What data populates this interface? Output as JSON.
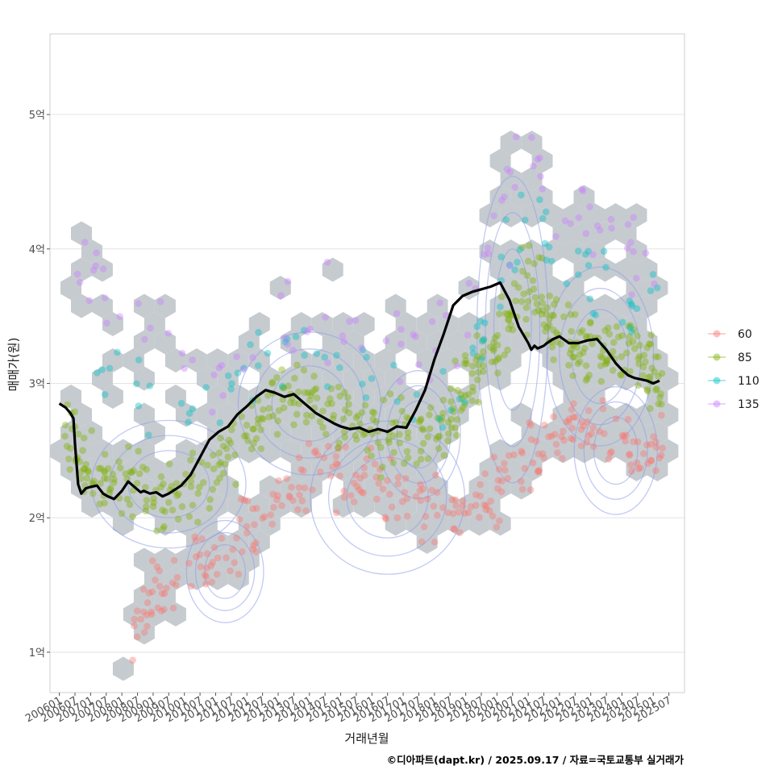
{
  "chart_data": {
    "type": "scatter",
    "title": "",
    "xlabel": "거래년월",
    "ylabel": "매매가(원)",
    "caption": "©디아파트(dapt.kr) / 2025.09.17 / 자료=국토교통부 실거래가",
    "ylim": [
      0.7,
      5.6
    ],
    "xlim": [
      -0.3,
      20.0
    ],
    "y_ticks": [
      {
        "value": 1,
        "label": "1억"
      },
      {
        "value": 2,
        "label": "2억"
      },
      {
        "value": 3,
        "label": "3억"
      },
      {
        "value": 4,
        "label": "4억"
      },
      {
        "value": 5,
        "label": "5억"
      }
    ],
    "x_ticks": [
      "200601",
      "200607",
      "200701",
      "200707",
      "200801",
      "200807",
      "200901",
      "200907",
      "201001",
      "201007",
      "201101",
      "201107",
      "201201",
      "201207",
      "201301",
      "201307",
      "201401",
      "201407",
      "201501",
      "201507",
      "201601",
      "201607",
      "201701",
      "201707",
      "201801",
      "201807",
      "201901",
      "201907",
      "202001",
      "202007",
      "202101",
      "202107",
      "202201",
      "202207",
      "202301",
      "202307",
      "202401",
      "202407",
      "202501",
      "202507"
    ],
    "grid": true,
    "legend_position": "right",
    "series": [
      {
        "name": "60",
        "color": "#F8766D",
        "anchors": [
          [
            2.2,
            1.0
          ],
          [
            3.0,
            1.4
          ],
          [
            4.0,
            1.6
          ],
          [
            5.0,
            1.7
          ],
          [
            6.0,
            1.9
          ],
          [
            7.0,
            2.1
          ],
          [
            8.0,
            2.3
          ],
          [
            9.0,
            2.35
          ],
          [
            10.0,
            2.3
          ],
          [
            11.0,
            2.2
          ],
          [
            12.0,
            2.1
          ],
          [
            13.0,
            2.05
          ],
          [
            14.0,
            2.2
          ],
          [
            15.0,
            2.45
          ],
          [
            15.8,
            2.6
          ],
          [
            16.5,
            2.7
          ],
          [
            17.5,
            2.6
          ],
          [
            18.5,
            2.5
          ],
          [
            19.3,
            2.55
          ]
        ],
        "spread": 0.22
      },
      {
        "name": "85",
        "color": "#7CAE00",
        "anchors": [
          [
            0.2,
            2.65
          ],
          [
            0.8,
            2.35
          ],
          [
            1.5,
            2.3
          ],
          [
            2.5,
            2.2
          ],
          [
            3.5,
            2.15
          ],
          [
            4.5,
            2.2
          ],
          [
            5.5,
            2.45
          ],
          [
            6.5,
            2.75
          ],
          [
            7.5,
            2.95
          ],
          [
            8.5,
            2.85
          ],
          [
            9.5,
            2.7
          ],
          [
            10.5,
            2.6
          ],
          [
            11.5,
            2.6
          ],
          [
            12.3,
            2.7
          ],
          [
            13.0,
            2.9
          ],
          [
            13.8,
            3.2
          ],
          [
            14.5,
            3.6
          ],
          [
            15.2,
            3.75
          ],
          [
            15.8,
            3.4
          ],
          [
            16.5,
            3.3
          ],
          [
            17.2,
            3.3
          ],
          [
            18.0,
            3.25
          ],
          [
            18.8,
            3.1
          ],
          [
            19.3,
            3.0
          ]
        ],
        "spread": 0.25
      },
      {
        "name": "110",
        "color": "#00BFC4",
        "anchors": [
          [
            1.2,
            3.2
          ],
          [
            2.5,
            2.9
          ],
          [
            4.5,
            2.8
          ],
          [
            6.0,
            3.0
          ],
          [
            7.3,
            3.25
          ],
          [
            8.8,
            3.15
          ],
          [
            10.5,
            2.95
          ],
          [
            12.5,
            2.95
          ],
          [
            13.5,
            3.3
          ],
          [
            14.3,
            3.9
          ],
          [
            15.0,
            4.3
          ],
          [
            16.0,
            3.9
          ],
          [
            17.0,
            3.85
          ],
          [
            18.3,
            3.6
          ],
          [
            19.2,
            3.5
          ]
        ],
        "spread": 0.3
      },
      {
        "name": "135",
        "color": "#C77CFF",
        "anchors": [
          [
            0.2,
            3.7
          ],
          [
            1.3,
            3.8
          ],
          [
            3.0,
            3.3
          ],
          [
            5.0,
            3.1
          ],
          [
            7.2,
            3.6
          ],
          [
            8.5,
            3.55
          ],
          [
            10.0,
            3.3
          ],
          [
            11.5,
            3.35
          ],
          [
            12.8,
            3.4
          ],
          [
            14.0,
            4.1
          ],
          [
            14.8,
            4.6
          ],
          [
            16.0,
            4.35
          ],
          [
            17.0,
            4.1
          ],
          [
            18.3,
            4.0
          ],
          [
            19.2,
            3.8
          ]
        ],
        "spread": 0.35
      }
    ],
    "trend_line": {
      "color": "#000000",
      "x": [
        0.0,
        0.2,
        0.35,
        0.45,
        0.5,
        0.6,
        0.7,
        0.85,
        1.0,
        1.2,
        1.4,
        1.55,
        1.75,
        2.0,
        2.2,
        2.3,
        2.45,
        2.6,
        2.7,
        2.9,
        3.1,
        3.3,
        3.5,
        3.7,
        3.9,
        4.2,
        4.5,
        4.8,
        5.1,
        5.4,
        5.7,
        6.0,
        6.3,
        6.6,
        6.9,
        7.2,
        7.5,
        7.8,
        8.0,
        8.2,
        8.5,
        8.8,
        9.0,
        9.3,
        9.6,
        9.9,
        10.2,
        10.5,
        10.8,
        11.1,
        11.4,
        11.7,
        12.0,
        12.3,
        12.6,
        12.9,
        13.2,
        13.5,
        13.8,
        14.1,
        14.4,
        14.7,
        15.0,
        15.1,
        15.2,
        15.3,
        15.4,
        15.5,
        15.6,
        15.8,
        16.0,
        16.3,
        16.6,
        16.9,
        17.2,
        17.5,
        17.8,
        18.0,
        18.2,
        18.4,
        18.6,
        18.8,
        19.0,
        19.2
      ],
      "y": [
        2.85,
        2.82,
        2.78,
        2.74,
        2.55,
        2.25,
        2.18,
        2.22,
        2.23,
        2.24,
        2.18,
        2.16,
        2.14,
        2.2,
        2.27,
        2.25,
        2.22,
        2.19,
        2.2,
        2.18,
        2.19,
        2.16,
        2.18,
        2.21,
        2.24,
        2.32,
        2.45,
        2.58,
        2.64,
        2.68,
        2.77,
        2.83,
        2.9,
        2.95,
        2.93,
        2.9,
        2.92,
        2.86,
        2.82,
        2.78,
        2.74,
        2.7,
        2.68,
        2.66,
        2.67,
        2.64,
        2.66,
        2.64,
        2.68,
        2.67,
        2.8,
        2.95,
        3.18,
        3.37,
        3.58,
        3.65,
        3.68,
        3.7,
        3.72,
        3.75,
        3.62,
        3.42,
        3.3,
        3.25,
        3.28,
        3.26,
        3.27,
        3.28,
        3.3,
        3.33,
        3.35,
        3.3,
        3.3,
        3.32,
        3.33,
        3.25,
        3.15,
        3.1,
        3.06,
        3.04,
        3.03,
        3.02,
        3.0,
        3.02
      ]
    }
  }
}
